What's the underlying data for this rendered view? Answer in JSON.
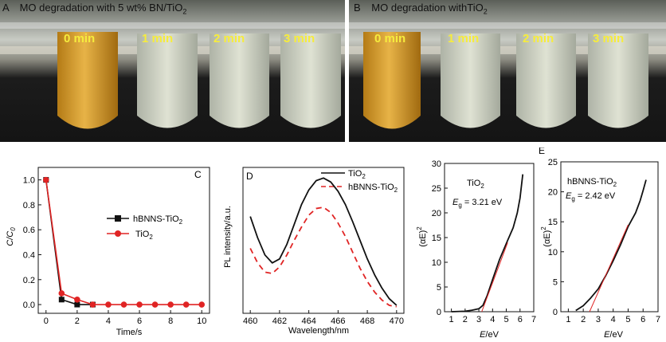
{
  "figure": {
    "panel_a": {
      "letter": "A",
      "caption_prefix": "MO degradation with 5 wt% BN/TiO",
      "caption_sub": "2",
      "tube_labels": [
        "0 min",
        "1 min",
        "2 min",
        "3 min"
      ]
    },
    "panel_b": {
      "letter": "B",
      "caption_prefix": "MO degradation withTiO",
      "caption_sub": "2",
      "tube_labels": [
        "0 min",
        "1 min",
        "2 min",
        "3 min"
      ]
    }
  },
  "chart_data": [
    {
      "panel": "C",
      "type": "line",
      "xlabel": "Time/s",
      "ylabel_main": "C/C",
      "ylabel_sub": "0",
      "xlim": [
        -0.5,
        10.5
      ],
      "ylim": [
        -0.07,
        1.1
      ],
      "xticks": [
        0,
        2,
        4,
        6,
        8,
        10
      ],
      "yticks": [
        0.0,
        0.2,
        0.4,
        0.6,
        0.8,
        1.0
      ],
      "ytick_labels": [
        "0.0",
        "0.2",
        "0.4",
        "0.6",
        "0.8",
        "1.0"
      ],
      "legend_position": "middle-right",
      "series": [
        {
          "name": "hBNNS-TiO",
          "name_sub": "2",
          "color": "#111111",
          "marker": "square",
          "x": [
            0,
            1,
            2,
            3
          ],
          "y": [
            1.0,
            0.04,
            0.0,
            0.0
          ]
        },
        {
          "name": "TiO",
          "name_sub": "2",
          "color": "#e02424",
          "marker": "circle",
          "x": [
            0,
            1,
            2,
            3,
            4,
            5,
            6,
            7,
            8,
            9,
            10
          ],
          "y": [
            1.0,
            0.09,
            0.04,
            0.0,
            0.0,
            0.0,
            0.0,
            0.0,
            0.0,
            0.0,
            0.0
          ]
        }
      ]
    },
    {
      "panel": "D",
      "type": "line",
      "xlabel": "Wavelength/nm",
      "ylabel": "PL intensity/a.u.",
      "xlim": [
        459.5,
        470.5
      ],
      "xticks": [
        460,
        462,
        464,
        466,
        468,
        470
      ],
      "y_ticks_shown": false,
      "legend_position": "top-right",
      "series": [
        {
          "name": "TiO",
          "name_sub": "2",
          "color": "#111111",
          "dash": "solid",
          "x": [
            460,
            460.5,
            461,
            461.5,
            462,
            462.5,
            463,
            463.5,
            464,
            464.5,
            465,
            465.5,
            466,
            466.5,
            467,
            467.5,
            468,
            468.5,
            469,
            469.5,
            470
          ],
          "y": [
            0.68,
            0.52,
            0.39,
            0.33,
            0.36,
            0.47,
            0.62,
            0.77,
            0.88,
            0.95,
            0.97,
            0.94,
            0.87,
            0.77,
            0.64,
            0.5,
            0.36,
            0.24,
            0.14,
            0.06,
            0.01
          ]
        },
        {
          "name": "hBNNS-TiO",
          "name_sub": "2",
          "color": "#e02424",
          "dash": "dashed",
          "x": [
            460,
            460.5,
            461,
            461.5,
            462,
            462.5,
            463,
            463.5,
            464,
            464.5,
            465,
            465.5,
            466,
            466.5,
            467,
            467.5,
            468,
            468.5,
            469,
            469.5,
            470
          ],
          "y": [
            0.44,
            0.33,
            0.26,
            0.25,
            0.3,
            0.39,
            0.5,
            0.6,
            0.69,
            0.74,
            0.75,
            0.71,
            0.63,
            0.53,
            0.41,
            0.29,
            0.19,
            0.11,
            0.05,
            0.01,
            0.0
          ]
        }
      ]
    },
    {
      "panel": "",
      "type": "line",
      "xlabel_main": "E",
      "xlabel_rest": "/eV",
      "ylabel": "(αE)",
      "ylabel_sup": "2",
      "annotation_material": "TiO",
      "annotation_material_sub": "2",
      "annotation_eg": "E",
      "annotation_eg_sub": "g",
      "annotation_eg_value": " = 3.21 eV",
      "xlim": [
        0.5,
        7
      ],
      "ylim": [
        0,
        30
      ],
      "xticks": [
        1,
        2,
        3,
        4,
        5,
        6,
        7
      ],
      "yticks": [
        0,
        5,
        10,
        15,
        20,
        25,
        30
      ],
      "series": [
        {
          "name": "",
          "color": "#111111",
          "x": [
            1.0,
            2.0,
            2.5,
            3.0,
            3.3,
            3.6,
            4.0,
            4.5,
            5.0,
            5.5,
            5.8,
            6.0,
            6.2
          ],
          "y": [
            0.0,
            0.1,
            0.3,
            0.6,
            1.3,
            3.2,
            6.5,
            10.5,
            13.8,
            17.0,
            20.0,
            23.0,
            27.8
          ]
        },
        {
          "name": "",
          "color": "#e02424",
          "x": [
            3.21,
            5.1
          ],
          "y": [
            0.0,
            14.0
          ]
        }
      ]
    },
    {
      "panel": "E",
      "type": "line",
      "xlabel_main": "E",
      "xlabel_rest": "/eV",
      "ylabel": "(αE)",
      "ylabel_sup": "2",
      "annotation_material": "hBNNS-TiO",
      "annotation_material_sub": "2",
      "annotation_eg": "E",
      "annotation_eg_sub": "g",
      "annotation_eg_value": " = 2.42 eV",
      "xlim": [
        0.5,
        7
      ],
      "ylim": [
        0,
        25
      ],
      "xticks": [
        1,
        2,
        3,
        4,
        5,
        6,
        7
      ],
      "yticks": [
        0,
        5,
        10,
        15,
        20,
        25
      ],
      "series": [
        {
          "name": "",
          "color": "#111111",
          "x": [
            1.5,
            2.0,
            2.5,
            3.0,
            3.5,
            4.0,
            4.5,
            5.0,
            5.5,
            5.8,
            6.0,
            6.2
          ],
          "y": [
            0.2,
            1.0,
            2.3,
            3.8,
            6.0,
            8.5,
            11.2,
            14.2,
            16.5,
            18.5,
            20.2,
            22.0
          ]
        },
        {
          "name": "",
          "color": "#e02424",
          "x": [
            2.42,
            5.0
          ],
          "y": [
            0.0,
            14.5
          ]
        }
      ]
    }
  ]
}
